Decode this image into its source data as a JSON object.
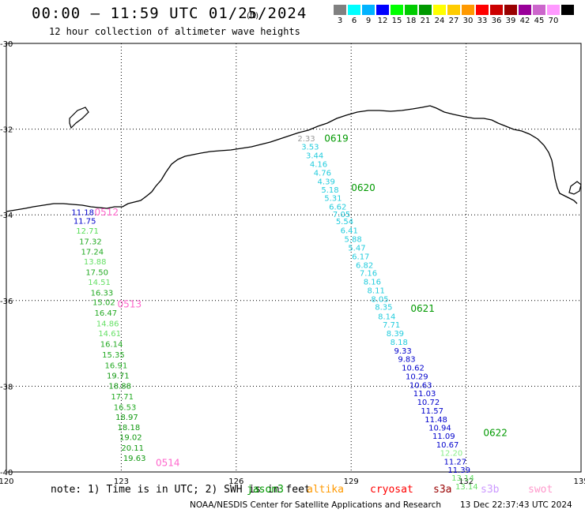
{
  "header": {
    "title": "00:00 – 11:59 UTC 01/25/2024",
    "subtitle": "12 hour collection of altimeter wave heights"
  },
  "legend": {
    "unit": "(ft)",
    "bins": [
      {
        "label": "3",
        "color": "#808080"
      },
      {
        "label": "6",
        "color": "#00ffff"
      },
      {
        "label": "9",
        "color": "#00b3ff"
      },
      {
        "label": "12",
        "color": "#0000ff"
      },
      {
        "label": "15",
        "color": "#00ff00"
      },
      {
        "label": "18",
        "color": "#00cc00"
      },
      {
        "label": "21",
        "color": "#009900"
      },
      {
        "label": "24",
        "color": "#ffff00"
      },
      {
        "label": "27",
        "color": "#ffcc00"
      },
      {
        "label": "30",
        "color": "#ff9900"
      },
      {
        "label": "33",
        "color": "#ff0000"
      },
      {
        "label": "36",
        "color": "#cc0000"
      },
      {
        "label": "39",
        "color": "#990000"
      },
      {
        "label": "42",
        "color": "#990099"
      },
      {
        "label": "45",
        "color": "#cc66cc"
      },
      {
        "label": "70",
        "color": "#ff99ff"
      },
      {
        "label": "",
        "color": "#000000"
      }
    ]
  },
  "map": {
    "lon_ticks": [
      "120",
      "123",
      "126",
      "129",
      "132",
      "135"
    ],
    "lat_ticks": [
      "-30",
      "-32",
      "-34",
      "-36",
      "-38",
      "-40"
    ],
    "tracks": [
      {
        "name": "western",
        "labels": [
          {
            "text": "0512",
            "lon": 122.3,
            "lat": -33.95,
            "color": "#ff66cc"
          },
          {
            "text": "0513",
            "lon": 122.9,
            "lat": -36.1,
            "color": "#ff66cc"
          },
          {
            "text": "0514",
            "lon": 123.9,
            "lat": -39.8,
            "color": "#ff66cc"
          }
        ],
        "points": [
          {
            "value": "11.18",
            "lon": 121.7,
            "lat": -33.95,
            "color": "#0000cc"
          },
          {
            "value": "11.75",
            "lon": 121.75,
            "lat": -34.15,
            "color": "#0000cc"
          },
          {
            "value": "12.71",
            "lon": 121.82,
            "lat": -34.38,
            "color": "#55dd55"
          },
          {
            "value": "17.32",
            "lon": 121.9,
            "lat": -34.63,
            "color": "#22aa22"
          },
          {
            "value": "17.24",
            "lon": 121.95,
            "lat": -34.87,
            "color": "#22aa22"
          },
          {
            "value": "13.88",
            "lon": 122.02,
            "lat": -35.1,
            "color": "#66e066"
          },
          {
            "value": "17.50",
            "lon": 122.07,
            "lat": -35.35,
            "color": "#22aa22"
          },
          {
            "value": "14.51",
            "lon": 122.13,
            "lat": -35.58,
            "color": "#66e066"
          },
          {
            "value": "16.33",
            "lon": 122.2,
            "lat": -35.83,
            "color": "#22aa22"
          },
          {
            "value": "15.02",
            "lon": 122.25,
            "lat": -36.05,
            "color": "#22aa22"
          },
          {
            "value": "16.47",
            "lon": 122.3,
            "lat": -36.3,
            "color": "#22aa22"
          },
          {
            "value": "14.86",
            "lon": 122.35,
            "lat": -36.55,
            "color": "#66e066"
          },
          {
            "value": "14.61",
            "lon": 122.4,
            "lat": -36.78,
            "color": "#66e066"
          },
          {
            "value": "16.14",
            "lon": 122.45,
            "lat": -37.03,
            "color": "#22aa22"
          },
          {
            "value": "15.35",
            "lon": 122.5,
            "lat": -37.27,
            "color": "#22aa22"
          },
          {
            "value": "16.91",
            "lon": 122.57,
            "lat": -37.52,
            "color": "#22aa22"
          },
          {
            "value": "19.71",
            "lon": 122.62,
            "lat": -37.76,
            "color": "#119911"
          },
          {
            "value": "18.88",
            "lon": 122.67,
            "lat": -38.0,
            "color": "#119911"
          },
          {
            "value": "17.71",
            "lon": 122.73,
            "lat": -38.25,
            "color": "#22aa22"
          },
          {
            "value": "16.53",
            "lon": 122.8,
            "lat": -38.5,
            "color": "#22aa22"
          },
          {
            "value": "18.97",
            "lon": 122.85,
            "lat": -38.73,
            "color": "#119911"
          },
          {
            "value": "18.18",
            "lon": 122.9,
            "lat": -38.97,
            "color": "#119911"
          },
          {
            "value": "19.02",
            "lon": 122.95,
            "lat": -39.2,
            "color": "#119911"
          },
          {
            "value": "20.11",
            "lon": 123.0,
            "lat": -39.45,
            "color": "#119911"
          },
          {
            "value": "19.63",
            "lon": 123.05,
            "lat": -39.69,
            "color": "#119911"
          }
        ]
      },
      {
        "name": "eastern",
        "labels": [
          {
            "text": "0619",
            "lon": 128.3,
            "lat": -32.23,
            "color": "#009900"
          },
          {
            "text": "0620",
            "lon": 129.0,
            "lat": -33.38,
            "color": "#009900"
          },
          {
            "text": "0621",
            "lon": 130.55,
            "lat": -36.2,
            "color": "#009900"
          },
          {
            "text": "0622",
            "lon": 132.45,
            "lat": -39.1,
            "color": "#009900"
          }
        ],
        "points": [
          {
            "value": "2.33",
            "lon": 127.6,
            "lat": -32.23,
            "color": "#999999"
          },
          {
            "value": "3.53",
            "lon": 127.7,
            "lat": -32.42,
            "color": "#22ccdd"
          },
          {
            "value": "3.44",
            "lon": 127.82,
            "lat": -32.62,
            "color": "#22ccdd"
          },
          {
            "value": "4.16",
            "lon": 127.92,
            "lat": -32.83,
            "color": "#22ccdd"
          },
          {
            "value": "4.76",
            "lon": 128.02,
            "lat": -33.03,
            "color": "#22ccdd"
          },
          {
            "value": "4.39",
            "lon": 128.12,
            "lat": -33.23,
            "color": "#22ccdd"
          },
          {
            "value": "5.18",
            "lon": 128.22,
            "lat": -33.43,
            "color": "#22ccdd"
          },
          {
            "value": "5.31",
            "lon": 128.3,
            "lat": -33.62,
            "color": "#22ccdd"
          },
          {
            "value": "6.62",
            "lon": 128.42,
            "lat": -33.82,
            "color": "#22ccdd"
          },
          {
            "value": "7.05",
            "lon": 128.52,
            "lat": -34.0,
            "color": "#22ccdd"
          },
          {
            "value": "5.54",
            "lon": 128.6,
            "lat": -34.16,
            "color": "#22ccdd"
          },
          {
            "value": "6.41",
            "lon": 128.72,
            "lat": -34.37,
            "color": "#22ccdd"
          },
          {
            "value": "5.88",
            "lon": 128.82,
            "lat": -34.58,
            "color": "#22ccdd"
          },
          {
            "value": "5.47",
            "lon": 128.92,
            "lat": -34.78,
            "color": "#22ccdd"
          },
          {
            "value": "6.17",
            "lon": 129.02,
            "lat": -34.98,
            "color": "#22ccdd"
          },
          {
            "value": "6.82",
            "lon": 129.12,
            "lat": -35.18,
            "color": "#22ccdd"
          },
          {
            "value": "7.16",
            "lon": 129.22,
            "lat": -35.37,
            "color": "#22ccdd"
          },
          {
            "value": "8.16",
            "lon": 129.32,
            "lat": -35.57,
            "color": "#22ccdd"
          },
          {
            "value": "8.11",
            "lon": 129.42,
            "lat": -35.77,
            "color": "#22ccdd"
          },
          {
            "value": "8.05",
            "lon": 129.52,
            "lat": -35.98,
            "color": "#22ccdd"
          },
          {
            "value": "8.35",
            "lon": 129.62,
            "lat": -36.16,
            "color": "#22ccdd"
          },
          {
            "value": "8.14",
            "lon": 129.7,
            "lat": -36.38,
            "color": "#22ccdd"
          },
          {
            "value": "7.71",
            "lon": 129.82,
            "lat": -36.57,
            "color": "#22ccdd"
          },
          {
            "value": "8.39",
            "lon": 129.92,
            "lat": -36.78,
            "color": "#22ccdd"
          },
          {
            "value": "8.18",
            "lon": 130.02,
            "lat": -36.98,
            "color": "#22ccdd"
          },
          {
            "value": "9.33",
            "lon": 130.12,
            "lat": -37.18,
            "color": "#0000cc"
          },
          {
            "value": "9.83",
            "lon": 130.22,
            "lat": -37.38,
            "color": "#0000cc"
          },
          {
            "value": "10.62",
            "lon": 130.32,
            "lat": -37.58,
            "color": "#0000cc"
          },
          {
            "value": "10.29",
            "lon": 130.42,
            "lat": -37.78,
            "color": "#0000cc"
          },
          {
            "value": "10.63",
            "lon": 130.52,
            "lat": -37.98,
            "color": "#0000cc"
          },
          {
            "value": "11.03",
            "lon": 130.62,
            "lat": -38.18,
            "color": "#0000cc"
          },
          {
            "value": "10.72",
            "lon": 130.72,
            "lat": -38.38,
            "color": "#0000cc"
          },
          {
            "value": "11.57",
            "lon": 130.82,
            "lat": -38.58,
            "color": "#0000cc"
          },
          {
            "value": "11.48",
            "lon": 130.92,
            "lat": -38.78,
            "color": "#0000cc"
          },
          {
            "value": "10.94",
            "lon": 131.02,
            "lat": -38.98,
            "color": "#0000cc"
          },
          {
            "value": "11.09",
            "lon": 131.12,
            "lat": -39.17,
            "color": "#0000cc"
          },
          {
            "value": "10.67",
            "lon": 131.22,
            "lat": -39.37,
            "color": "#0000cc"
          },
          {
            "value": "12.20",
            "lon": 131.32,
            "lat": -39.57,
            "color": "#88ee88"
          },
          {
            "value": "11.27",
            "lon": 131.42,
            "lat": -39.77,
            "color": "#0000cc"
          },
          {
            "value": "11.39",
            "lon": 131.52,
            "lat": -39.96,
            "color": "#0000cc"
          },
          {
            "value": "13.14",
            "lon": 131.62,
            "lat": -40.15,
            "color": "#66e066"
          },
          {
            "value": "13.14",
            "lon": 131.72,
            "lat": -40.35,
            "color": "#66e066"
          }
        ]
      }
    ]
  },
  "footer": {
    "note": "note: 1) Time is in UTC; 2) SWH is in feet",
    "missions": [
      {
        "label": "jason3",
        "color": "#009900"
      },
      {
        "label": "altika",
        "color": "#ff9900"
      },
      {
        "label": "cryosat",
        "color": "#ff0000"
      },
      {
        "label": "s3a",
        "color": "#990000"
      },
      {
        "label": "s3b",
        "color": "#cc99ff"
      },
      {
        "label": "swot",
        "color": "#ff99cc"
      }
    ],
    "credit": "NOAA/NESDIS Center for Satellite Applications and Research",
    "timestamp": "13 Dec 22:37:43 UTC 2024"
  }
}
